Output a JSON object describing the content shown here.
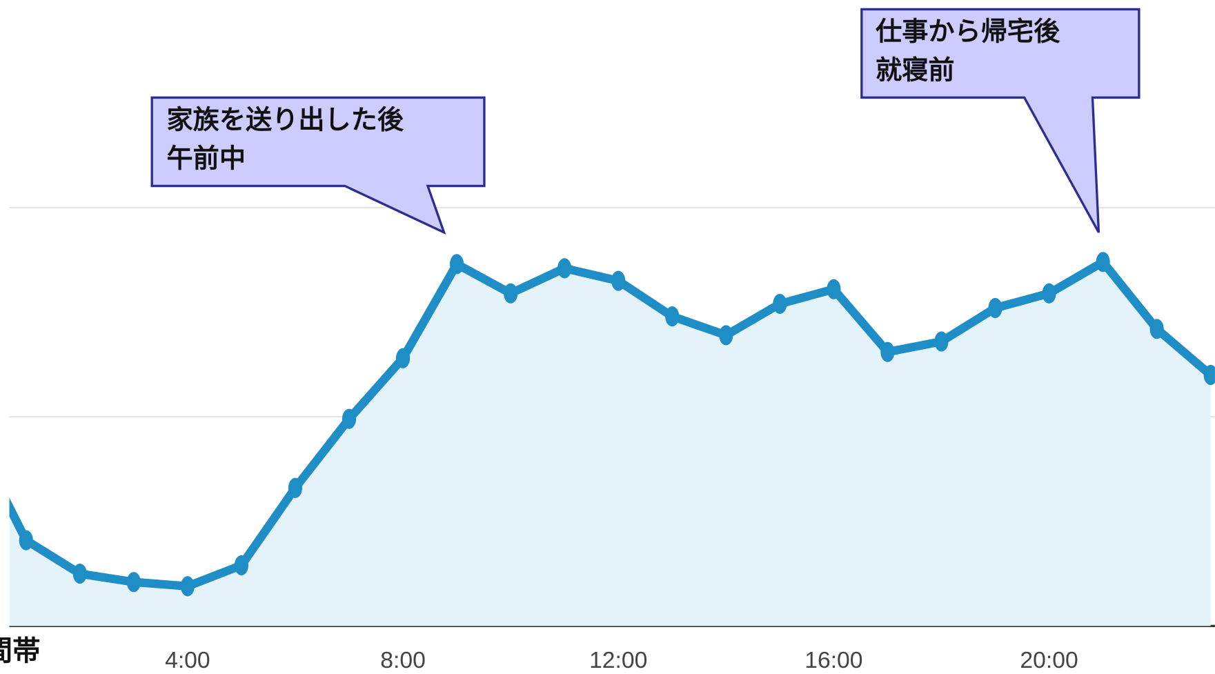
{
  "chart_data": {
    "type": "area",
    "xlabel": "時間帯",
    "x": [
      0,
      1,
      2,
      3,
      4,
      5,
      6,
      7,
      8,
      9,
      10,
      11,
      12,
      13,
      14,
      15,
      16,
      17,
      18,
      19,
      20,
      21,
      22,
      23
    ],
    "series": [
      {
        "color": "#1f8dc6",
        "values": [
          0.92,
          0.41,
          0.25,
          0.21,
          0.19,
          0.29,
          0.66,
          0.99,
          1.28,
          1.73,
          1.59,
          1.71,
          1.65,
          1.48,
          1.39,
          1.54,
          1.61,
          1.31,
          1.36,
          1.52,
          1.59,
          1.74,
          1.42,
          1.2
        ]
      }
    ],
    "fill": "#e4f2fa",
    "xlim": [
      0.69,
      23.08
    ],
    "xticks": [
      {
        "value": 4,
        "label": "4:00"
      },
      {
        "value": 8,
        "label": "8:00"
      },
      {
        "value": 12,
        "label": "12:00"
      },
      {
        "value": 16,
        "label": "16:00"
      },
      {
        "value": 20,
        "label": "20:00"
      }
    ],
    "ylim": [
      0,
      3
    ],
    "yticks": [
      0,
      1,
      2
    ],
    "grid": true,
    "annotations": [
      {
        "lines": [
          "家族を送り出した後",
          "午前中"
        ],
        "x": 9
      },
      {
        "lines": [
          "仕事から帰宅後",
          "就寝前"
        ],
        "x": 21
      }
    ]
  }
}
